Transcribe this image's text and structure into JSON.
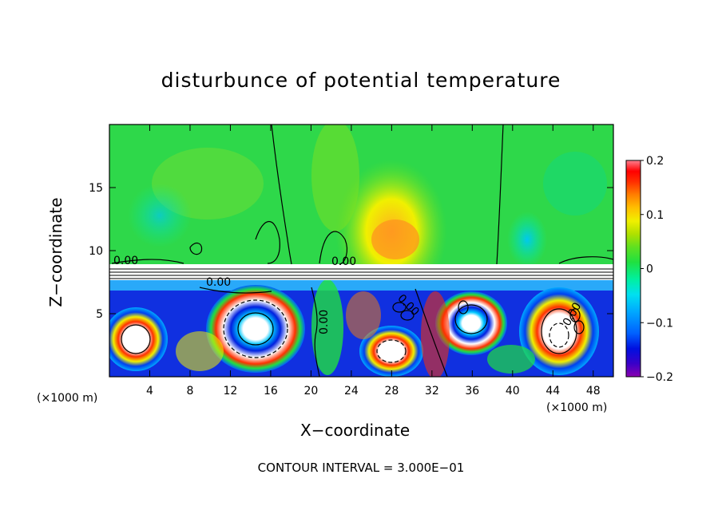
{
  "chart_data": {
    "type": "heatmap",
    "title": "disturbunce of potential temperature",
    "xlabel": "X−coordinate",
    "ylabel": "Z−coordinate",
    "x_unit_labels": [
      "(×1000 m)",
      "(×1000 m)"
    ],
    "xlim": [
      0,
      50
    ],
    "ylim": [
      0,
      20
    ],
    "x_ticks": [
      "4",
      "8",
      "12",
      "16",
      "20",
      "24",
      "28",
      "32",
      "36",
      "40",
      "44",
      "48"
    ],
    "y_ticks": [
      "5",
      "10",
      "15"
    ],
    "colorbar": {
      "range": [
        -0.2,
        0.2
      ],
      "tick_labels": [
        "0.2",
        "0.1",
        "0",
        "−0.1",
        "−0.2"
      ],
      "colors": [
        "#8a00b0",
        "#3a00c8",
        "#0010e0",
        "#0060ff",
        "#00a8ff",
        "#00e0f0",
        "#00f0a0",
        "#20e040",
        "#60e020",
        "#b0e000",
        "#f0f000",
        "#ffc000",
        "#ff8000",
        "#ff3000",
        "#ff0000",
        "#ff8090"
      ]
    },
    "contour_labels": [
      "0.00",
      "0.00",
      "0.00",
      "0.00",
      "0.00",
      "0.00"
    ],
    "footer": "CONTOUR INTERVAL = 3.000E−01"
  }
}
